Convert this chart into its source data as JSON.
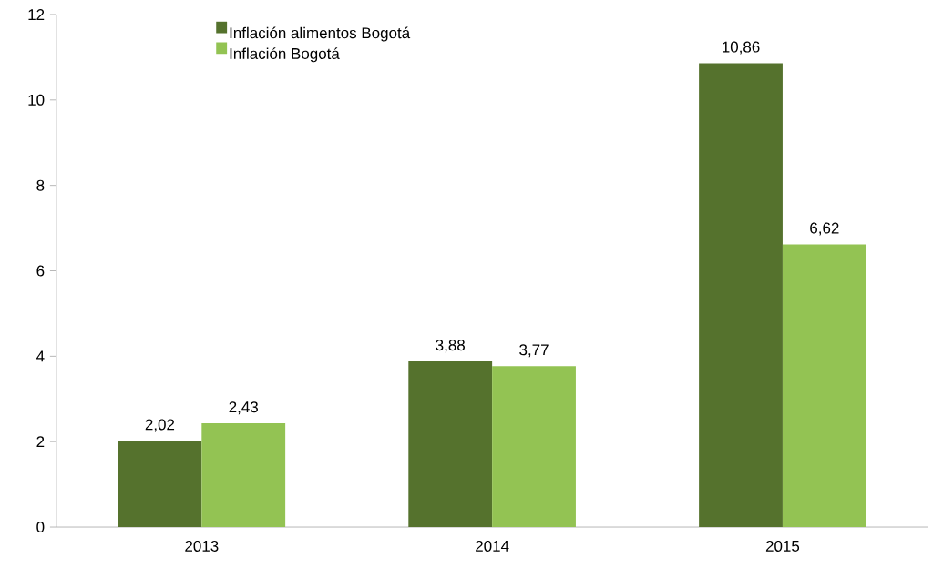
{
  "chart_data": {
    "type": "bar",
    "categories": [
      "2013",
      "2014",
      "2015"
    ],
    "series": [
      {
        "name": "Inflación alimentos Bogotá",
        "color": "#55722d",
        "values": [
          2.02,
          3.88,
          10.86
        ],
        "value_labels": [
          "2,02",
          "3,88",
          "10,86"
        ]
      },
      {
        "name": "Inflación Bogotá",
        "color": "#93c353",
        "values": [
          2.43,
          3.77,
          6.62
        ],
        "value_labels": [
          "2,43",
          "3,77",
          "6,62"
        ]
      }
    ],
    "ylim": [
      0,
      12
    ],
    "yticks": [
      0,
      2,
      4,
      6,
      8,
      10,
      12
    ],
    "grid": false,
    "legend": "top left"
  }
}
